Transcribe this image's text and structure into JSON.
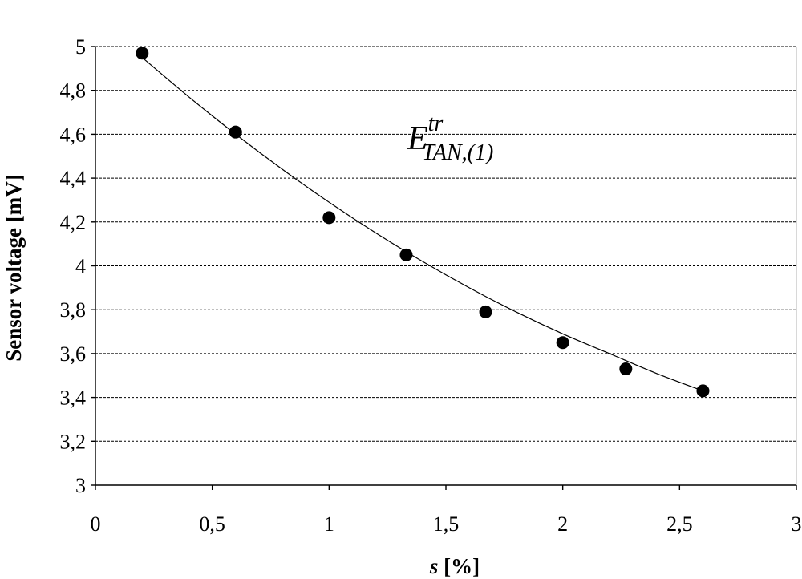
{
  "chart_data": {
    "type": "scatter",
    "title": "",
    "xlabel_symbol": "s",
    "xlabel_unit": "[%]",
    "ylabel": "Sensor voltage [mV]",
    "xlim": [
      0,
      3
    ],
    "ylim": [
      3,
      5
    ],
    "x_ticks": [
      "0",
      "0,5",
      "1",
      "1,5",
      "2",
      "2,5",
      "3"
    ],
    "y_ticks": [
      "3",
      "3,2",
      "3,4",
      "3,6",
      "3,8",
      "4",
      "4,2",
      "4,4",
      "4,6",
      "4,8",
      "5"
    ],
    "grid": "horizontal-dashed",
    "annotation": {
      "base": "E",
      "superscript": "tr",
      "subscript": "TAN,(1)"
    },
    "series": [
      {
        "marker": "filled-circle",
        "x": [
          0.2,
          0.6,
          1.0,
          1.33,
          1.67,
          2.0,
          2.27,
          2.6
        ],
        "y": [
          4.97,
          4.61,
          4.22,
          4.05,
          3.79,
          3.65,
          3.53,
          3.43
        ]
      }
    ],
    "trendline": {
      "x": [
        0.2,
        0.4,
        0.6,
        0.8,
        1.0,
        1.2,
        1.4,
        1.6,
        1.8,
        2.0,
        2.2,
        2.4,
        2.6
      ],
      "y": [
        4.95,
        4.77,
        4.6,
        4.44,
        4.29,
        4.15,
        4.02,
        3.9,
        3.79,
        3.69,
        3.6,
        3.51,
        3.43
      ]
    }
  }
}
